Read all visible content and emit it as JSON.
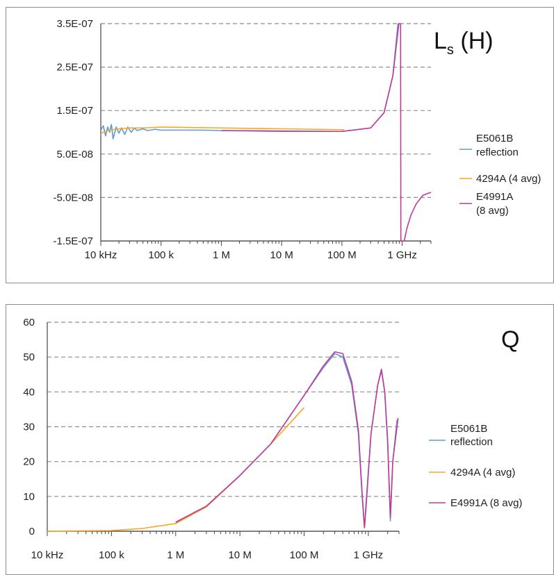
{
  "chart_data": [
    {
      "type": "line",
      "title": "Ls (H)",
      "title_main": "L",
      "title_sub": "s",
      "title_unit": " (H)",
      "x_scale": "log",
      "xlim": [
        10000,
        3000000000
      ],
      "ylim": [
        -1.5e-07,
        3.5e-07
      ],
      "grid": "horizontal dashed",
      "legend_position": "right",
      "x_ticks": [
        {
          "value": 10000,
          "label": "10 kHz"
        },
        {
          "value": 100000,
          "label": "100 k"
        },
        {
          "value": 1000000,
          "label": "1 M"
        },
        {
          "value": 10000000,
          "label": "10 M"
        },
        {
          "value": 100000000,
          "label": "100 M"
        },
        {
          "value": 1000000000,
          "label": "1 GHz"
        }
      ],
      "y_ticks": [
        {
          "value": 3.5e-07,
          "label": "3.5E-07"
        },
        {
          "value": 2.5e-07,
          "label": "2.5E-07"
        },
        {
          "value": 1.5e-07,
          "label": "1.5E-07"
        },
        {
          "value": 5e-08,
          "label": "5.0E-08"
        },
        {
          "value": -5e-08,
          "label": "-5.0E-08"
        },
        {
          "value": -1.5e-07,
          "label": "-1.5E-07"
        }
      ],
      "series": [
        {
          "name_lines": [
            "E5061B",
            "reflection"
          ],
          "color": "#5b9bd5",
          "points": [
            [
              10000,
              1.05e-07
            ],
            [
              11000,
              1.15e-07
            ],
            [
              12000,
              9.2e-08
            ],
            [
              13000,
              1.12e-07
            ],
            [
              14000,
              1e-07
            ],
            [
              15000,
              1.18e-07
            ],
            [
              16000,
              8.5e-08
            ],
            [
              18000,
              1.12e-07
            ],
            [
              20000,
              9.8e-08
            ],
            [
              22000,
              1.1e-07
            ],
            [
              25000,
              9.5e-08
            ],
            [
              28000,
              1.12e-07
            ],
            [
              32000,
              1e-07
            ],
            [
              36000,
              1.1e-07
            ],
            [
              40000,
              1.04e-07
            ],
            [
              50000,
              1.08e-07
            ],
            [
              60000,
              1.04e-07
            ],
            [
              80000,
              1.07e-07
            ],
            [
              100000,
              1.05e-07
            ],
            [
              200000,
              1.05e-07
            ],
            [
              500000,
              1.05e-07
            ],
            [
              1000000,
              1.04e-07
            ],
            [
              10000000,
              1.02e-07
            ],
            [
              100000000,
              1.02e-07
            ],
            [
              300000000,
              1.1e-07
            ],
            [
              500000000,
              1.45e-07
            ],
            [
              700000000,
              2.3e-07
            ],
            [
              850000000,
              3.5e-07
            ]
          ]
        },
        {
          "name_lines": [
            "4294A (4 avg)"
          ],
          "color": "#f5a623",
          "points": [
            [
              10000,
              9.7e-08
            ],
            [
              12000,
              1.02e-07
            ],
            [
              15000,
              1.06e-07
            ],
            [
              20000,
              1.08e-07
            ],
            [
              30000,
              1.1e-07
            ],
            [
              50000,
              1.1e-07
            ],
            [
              100000,
              1.12e-07
            ],
            [
              1000000,
              1.1e-07
            ],
            [
              10000000,
              1.08e-07
            ],
            [
              110000000,
              1.06e-07
            ]
          ]
        },
        {
          "name_lines": [
            "E4991A",
            "(8 avg)"
          ],
          "color": "#c0399b",
          "points": [
            [
              1000000,
              1.04e-07
            ],
            [
              10000000,
              1.03e-07
            ],
            [
              100000000,
              1.02e-07
            ],
            [
              300000000,
              1.1e-07
            ],
            [
              500000000,
              1.45e-07
            ],
            [
              700000000,
              2.3e-07
            ],
            [
              880000000,
              3.5e-07
            ],
            [
              940000000,
              3.5e-07
            ],
            [
              950000000,
              -1.5e-07
            ],
            [
              1080000000,
              -1.5e-07
            ],
            [
              1200000000,
              -1.2e-07
            ],
            [
              1400000000,
              -9e-08
            ],
            [
              1700000000,
              -6.5e-08
            ],
            [
              2200000000,
              -4.5e-08
            ],
            [
              3000000000,
              -3.8e-08
            ]
          ]
        }
      ]
    },
    {
      "type": "line",
      "title": "Q",
      "x_scale": "log",
      "xlim": [
        10000,
        3000000000
      ],
      "ylim": [
        0,
        60
      ],
      "grid": "horizontal dashed",
      "legend_position": "right",
      "x_ticks": [
        {
          "value": 10000,
          "label": "10 kHz"
        },
        {
          "value": 100000,
          "label": "100 k"
        },
        {
          "value": 1000000,
          "label": "1 M"
        },
        {
          "value": 10000000,
          "label": "10 M"
        },
        {
          "value": 100000000,
          "label": "100 M"
        },
        {
          "value": 1000000000,
          "label": "1 GHz"
        }
      ],
      "y_ticks": [
        {
          "value": 60,
          "label": "60"
        },
        {
          "value": 50,
          "label": "50"
        },
        {
          "value": 40,
          "label": "40"
        },
        {
          "value": 30,
          "label": "30"
        },
        {
          "value": 20,
          "label": "20"
        },
        {
          "value": 10,
          "label": "10"
        },
        {
          "value": 0,
          "label": "0"
        }
      ],
      "series": [
        {
          "name_lines": [
            "E5061B",
            "reflection"
          ],
          "color": "#5b9bd5",
          "points": [
            [
              1000000,
              2.4
            ],
            [
              3000000,
              7
            ],
            [
              10000000,
              16
            ],
            [
              30000000,
              25
            ],
            [
              100000000,
              39
            ],
            [
              200000000,
              47
            ],
            [
              300000000,
              51
            ],
            [
              400000000,
              50
            ],
            [
              550000000,
              42
            ],
            [
              700000000,
              28
            ],
            [
              800000000,
              10
            ],
            [
              870000000,
              1
            ],
            [
              920000000,
              8
            ],
            [
              1100000000,
              28
            ],
            [
              1400000000,
              42
            ],
            [
              1600000000,
              46
            ],
            [
              1800000000,
              40
            ],
            [
              2000000000,
              25
            ],
            [
              2200000000,
              3
            ],
            [
              2400000000,
              20
            ],
            [
              2800000000,
              32
            ]
          ]
        },
        {
          "name_lines": [
            "4294A (4 avg)"
          ],
          "color": "#f5a623",
          "points": [
            [
              10000,
              0
            ],
            [
              100000,
              0.2
            ],
            [
              300000,
              0.8
            ],
            [
              1000000,
              2.2
            ],
            [
              3000000,
              7
            ],
            [
              10000000,
              16
            ],
            [
              30000000,
              25
            ],
            [
              60000000,
              31
            ],
            [
              100000000,
              35.5
            ]
          ]
        },
        {
          "name_lines": [
            "E4991A (8 avg)"
          ],
          "color": "#c0399b",
          "points": [
            [
              1000000,
              2.6
            ],
            [
              3000000,
              7.2
            ],
            [
              10000000,
              16
            ],
            [
              30000000,
              25
            ],
            [
              100000000,
              39
            ],
            [
              200000000,
              47.5
            ],
            [
              300000000,
              51.5
            ],
            [
              400000000,
              51
            ],
            [
              550000000,
              43
            ],
            [
              700000000,
              29
            ],
            [
              800000000,
              11
            ],
            [
              870000000,
              1
            ],
            [
              930000000,
              8
            ],
            [
              1100000000,
              28
            ],
            [
              1400000000,
              42
            ],
            [
              1600000000,
              46.5
            ],
            [
              1800000000,
              40
            ],
            [
              2000000000,
              26
            ],
            [
              2200000000,
              4
            ],
            [
              2400000000,
              20
            ],
            [
              2900000000,
              32.5
            ]
          ]
        }
      ]
    }
  ]
}
